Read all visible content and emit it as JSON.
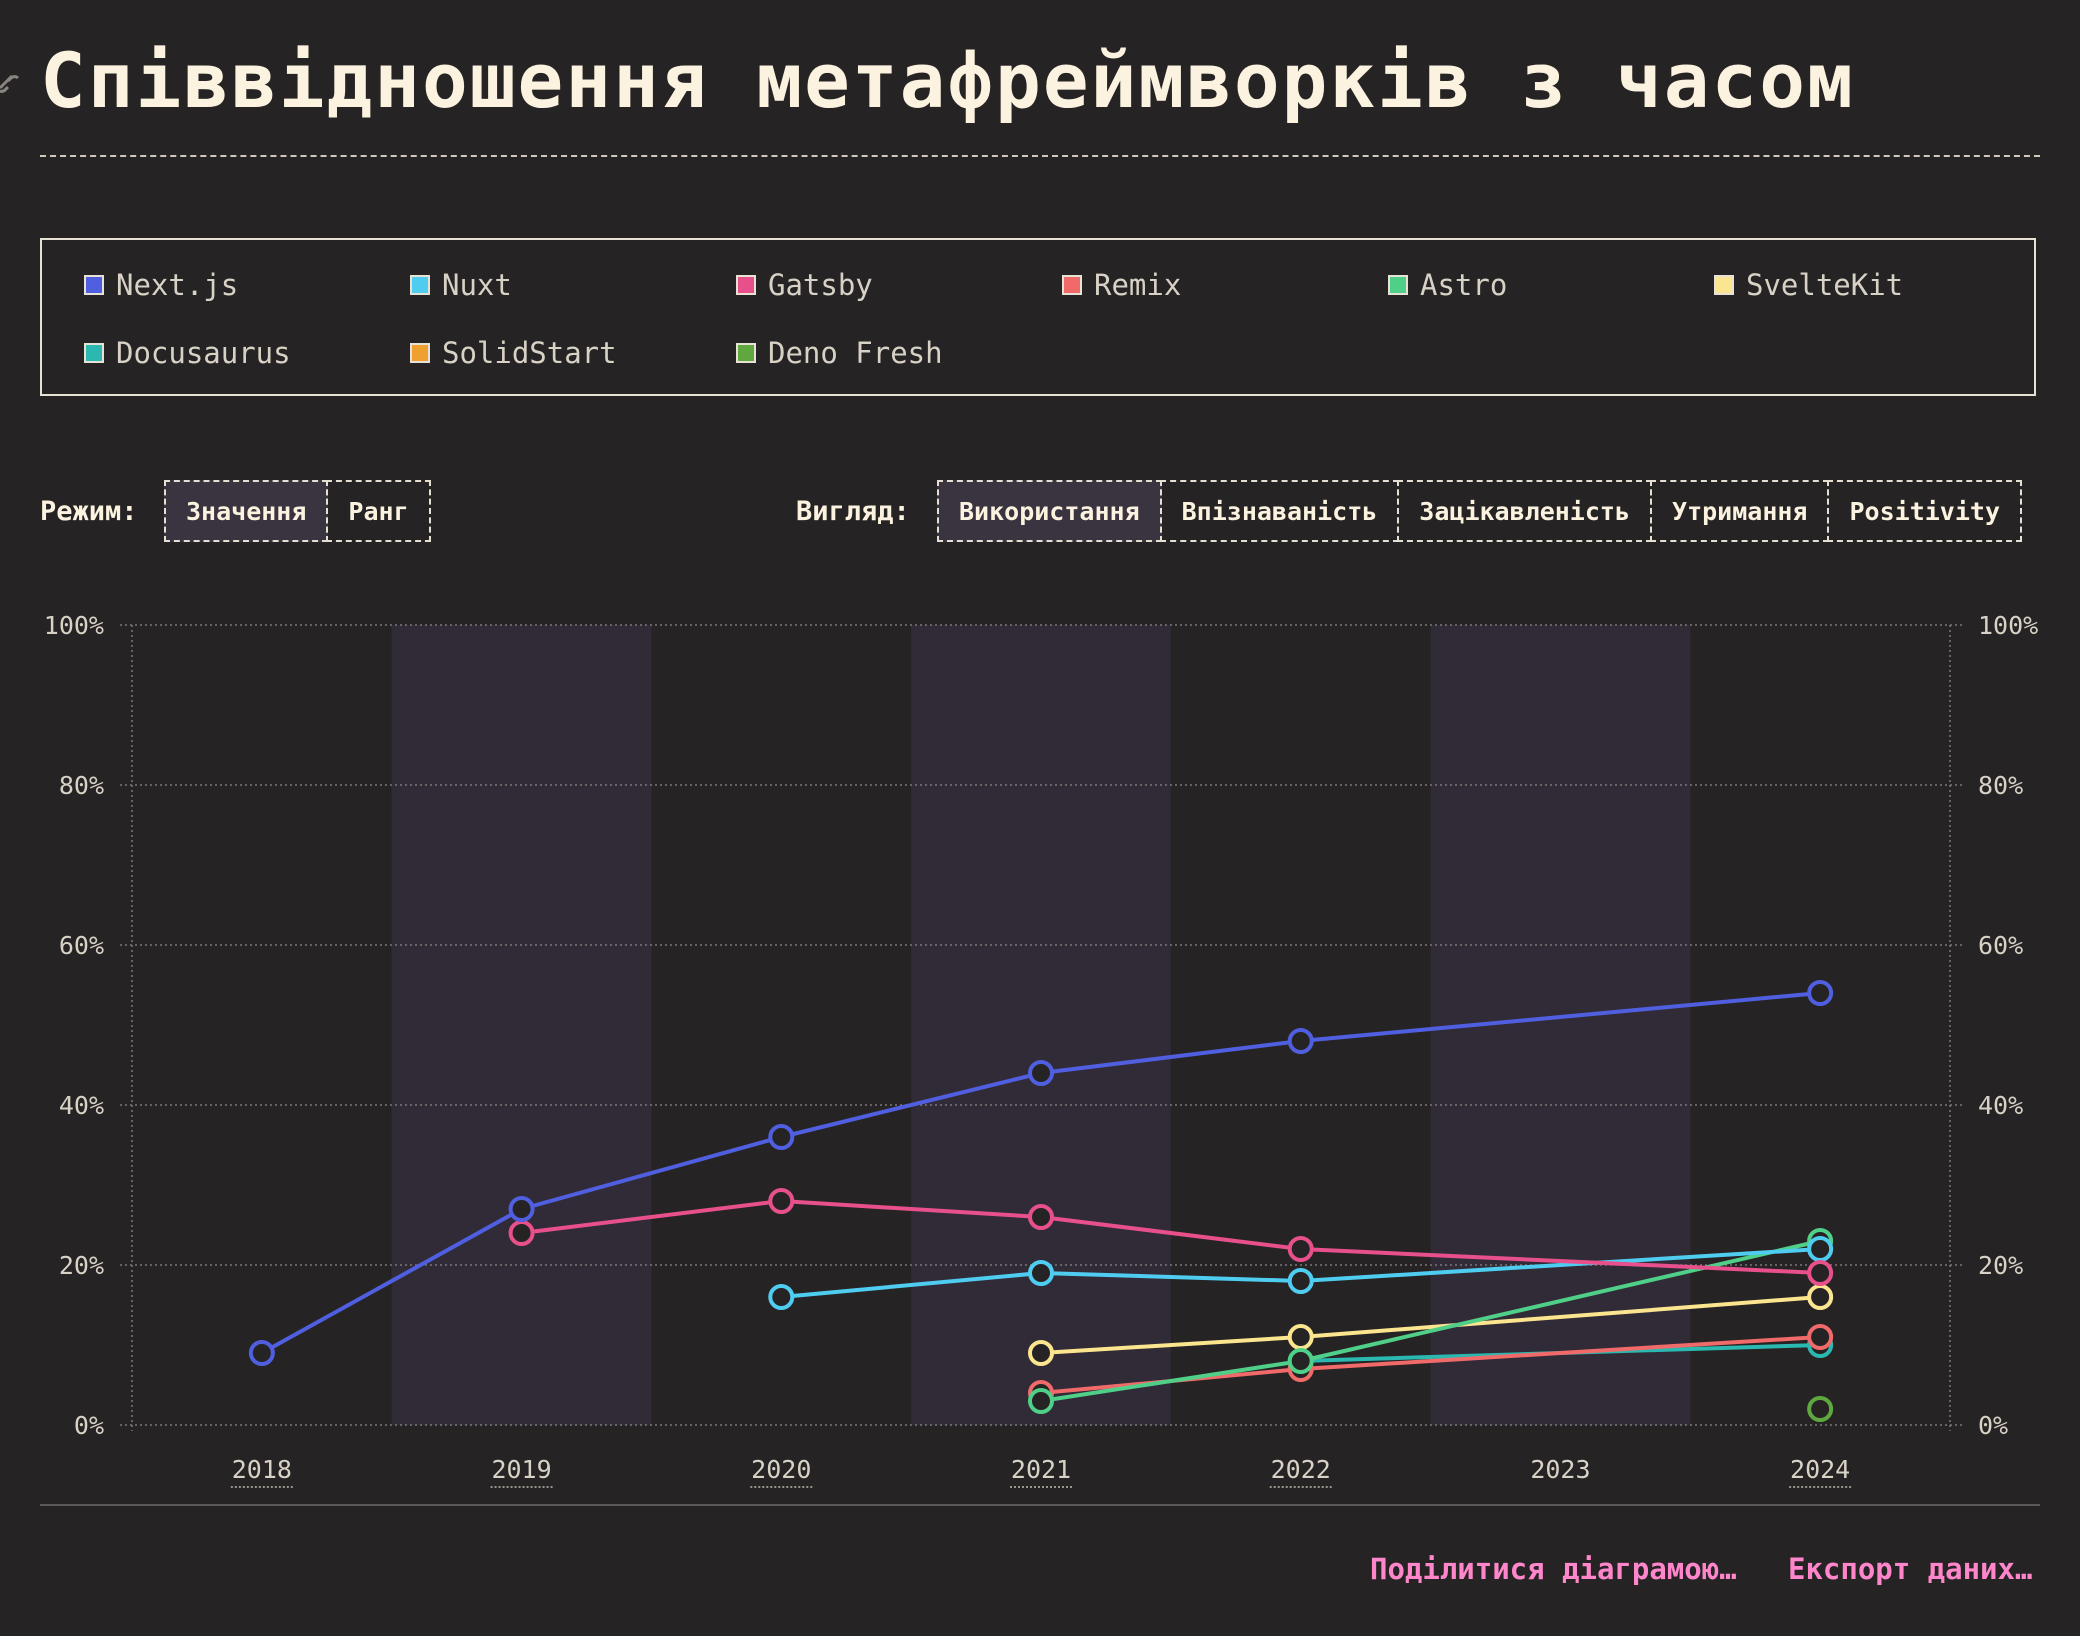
{
  "title": "Співвідношення метафреймворків з часом",
  "legend": [
    {
      "name": "Next.js",
      "color": "#4f5fe0"
    },
    {
      "name": "Nuxt",
      "color": "#4fcdf0"
    },
    {
      "name": "Gatsby",
      "color": "#e8508c"
    },
    {
      "name": "Remix",
      "color": "#f06a6a"
    },
    {
      "name": "Astro",
      "color": "#4fcf87"
    },
    {
      "name": "SvelteKit",
      "color": "#fbe58f"
    },
    {
      "name": "Docusaurus",
      "color": "#2bb8b0"
    },
    {
      "name": "SolidStart",
      "color": "#f0a030"
    },
    {
      "name": "Deno Fresh",
      "color": "#5fa840"
    }
  ],
  "controls": {
    "mode_label": "Режим:",
    "mode_options": [
      "Значення",
      "Ранг"
    ],
    "mode_selected": "Значення",
    "view_label": "Вигляд:",
    "view_options": [
      "Використання",
      "Впізнаваність",
      "Зацікавленість",
      "Утримання",
      "Positivity"
    ],
    "view_selected": "Використання"
  },
  "chart_data": {
    "type": "line",
    "x": [
      "2018",
      "2019",
      "2020",
      "2021",
      "2022",
      "2023",
      "2024"
    ],
    "y_ticks": [
      "0%",
      "20%",
      "40%",
      "60%",
      "80%",
      "100%"
    ],
    "ylim": [
      0,
      100
    ],
    "grid": true,
    "series": [
      {
        "name": "Next.js",
        "color": "#4f5fe0",
        "values": [
          9,
          27,
          36,
          44,
          48,
          null,
          54
        ]
      },
      {
        "name": "Gatsby",
        "color": "#e8508c",
        "values": [
          null,
          24,
          28,
          26,
          22,
          null,
          19
        ]
      },
      {
        "name": "Nuxt",
        "color": "#4fcdf0",
        "values": [
          null,
          null,
          16,
          19,
          18,
          null,
          22
        ]
      },
      {
        "name": "Astro",
        "color": "#4fcf87",
        "values": [
          null,
          null,
          null,
          3,
          8,
          null,
          23
        ]
      },
      {
        "name": "SvelteKit",
        "color": "#fbe58f",
        "values": [
          null,
          null,
          null,
          9,
          11,
          null,
          16
        ]
      },
      {
        "name": "Remix",
        "color": "#f06a6a",
        "values": [
          null,
          null,
          null,
          4,
          7,
          null,
          11
        ]
      },
      {
        "name": "Docusaurus",
        "color": "#2bb8b0",
        "values": [
          null,
          null,
          null,
          null,
          8,
          null,
          10
        ]
      },
      {
        "name": "SolidStart",
        "color": "#f0a030",
        "values": [
          null,
          null,
          null,
          null,
          null,
          null,
          null
        ]
      },
      {
        "name": "Deno Fresh",
        "color": "#5fa840",
        "values": [
          null,
          null,
          null,
          null,
          null,
          null,
          2
        ]
      }
    ]
  },
  "footer": {
    "share_label": "Поділитися діаграмою…",
    "export_label": "Експорт даних…"
  }
}
